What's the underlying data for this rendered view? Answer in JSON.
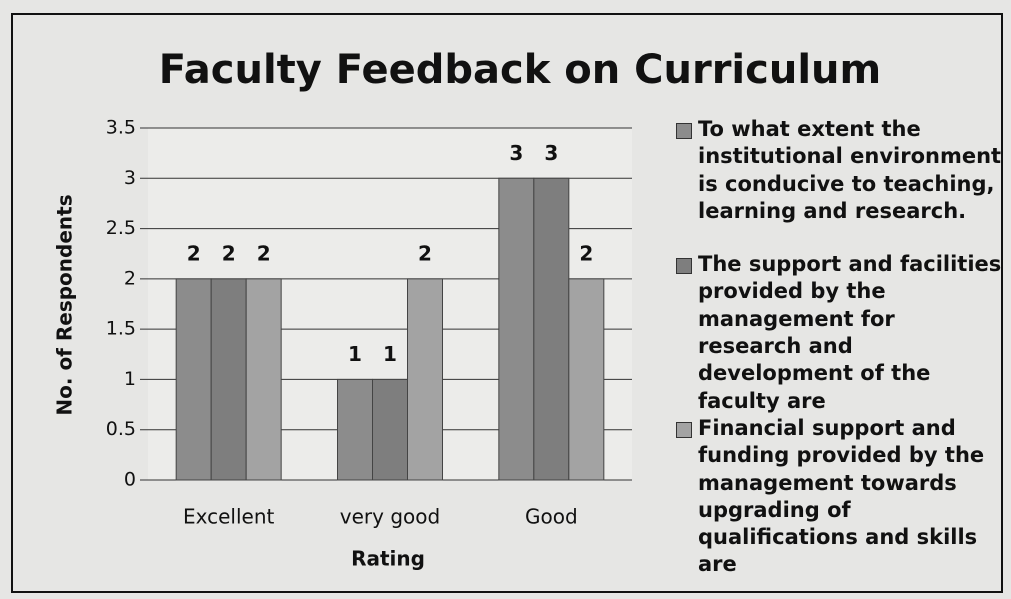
{
  "chart_data": {
    "type": "bar",
    "title": "Faculty Feedback on Curriculum",
    "x_label": "Rating",
    "y_label": "No. of Respondents",
    "categories": [
      "Excellent",
      "very good",
      "Good"
    ],
    "series": [
      {
        "name": "To what extent the institutional environment is conducive to teaching, learning and research.",
        "color": "#8c8c8c",
        "values": [
          2,
          1,
          3
        ]
      },
      {
        "name": "The support and facilities provided by the management for research and development of the faculty are",
        "color": "#7e7e7e",
        "values": [
          2,
          1,
          3
        ]
      },
      {
        "name": "Financial support and funding provided by the management towards upgrading of qualifications and skills are",
        "color": "#a3a3a3",
        "values": [
          2,
          2,
          2
        ]
      }
    ],
    "ylim": [
      0,
      3.5
    ],
    "yticks": [
      0,
      0.5,
      1,
      1.5,
      2,
      2.5,
      3,
      3.5
    ],
    "grid": true,
    "legend": "right"
  }
}
